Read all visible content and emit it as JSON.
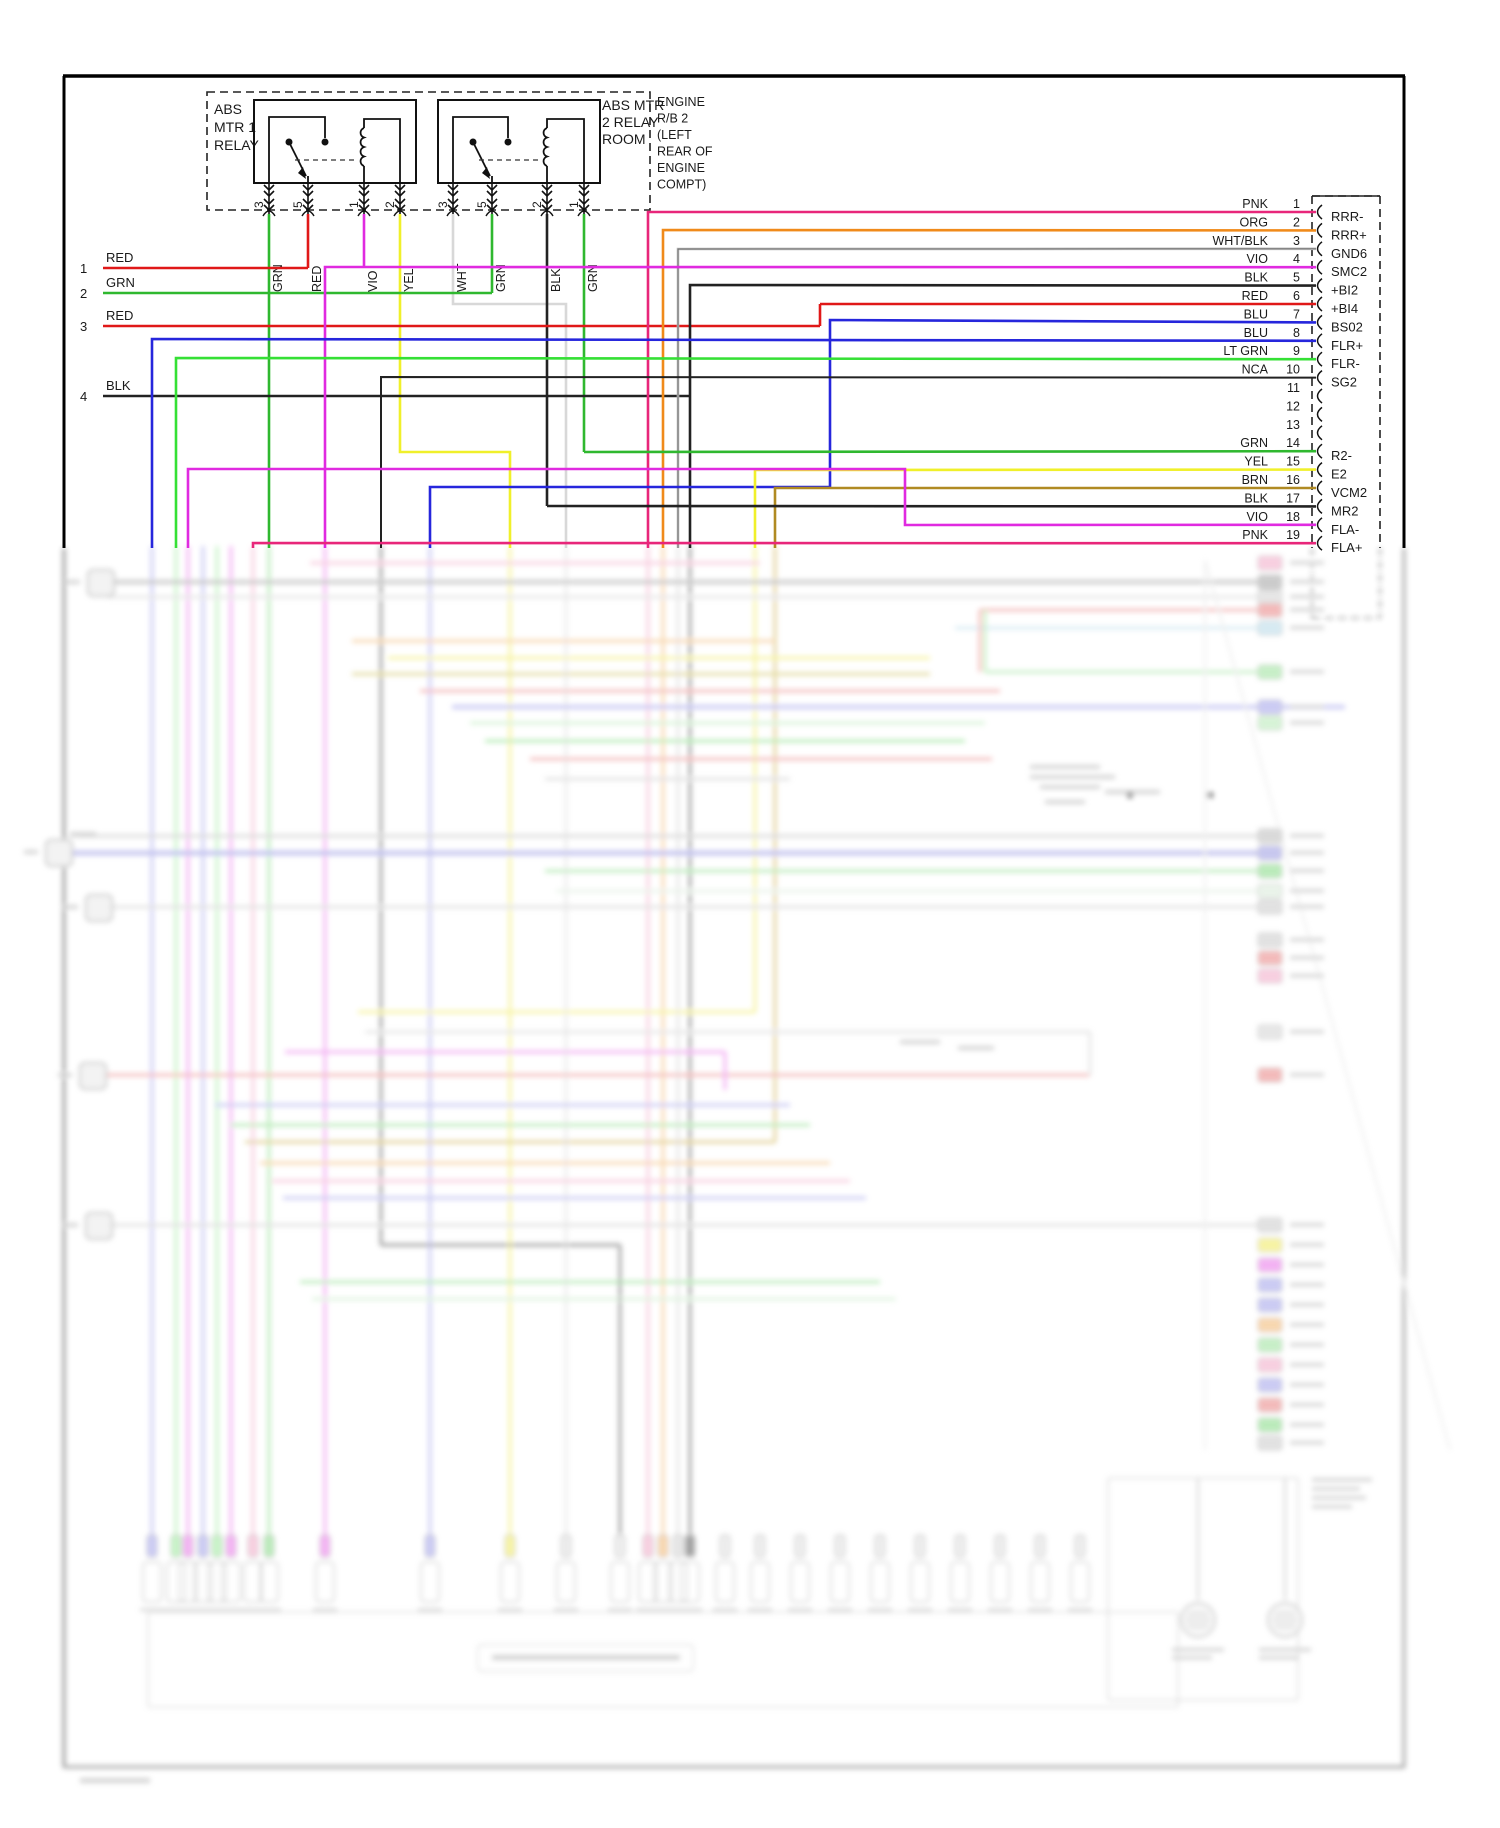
{
  "diagram": {
    "relay_section": {
      "relay1_label_lines": [
        "ABS",
        "MTR 1",
        "RELAY"
      ],
      "relay2_label_lines": [
        "ABS MTR",
        "2 RELAY",
        "ROOM"
      ],
      "location_label_lines": [
        "ENGINE",
        "R/B 2",
        "(LEFT",
        "REAR OF",
        "ENGINE",
        "COMPT)"
      ],
      "relay1_pin_numbers": [
        "3",
        "5",
        "1",
        "2"
      ],
      "relay2_pin_numbers": [
        "3",
        "5",
        "2",
        "1"
      ],
      "drop_wire_colors": [
        "GRN",
        "RED",
        "VIO",
        "YEL",
        "WHT",
        "GRN",
        "BLK",
        "GRN"
      ]
    },
    "left_wires": [
      {
        "num": "1",
        "color": "RED"
      },
      {
        "num": "2",
        "color": "GRN"
      },
      {
        "num": "3",
        "color": "RED"
      },
      {
        "num": "4",
        "color": "BLK"
      }
    ],
    "connector_pins": [
      {
        "num": "1",
        "color": "PNK",
        "signal": "RRR-"
      },
      {
        "num": "2",
        "color": "ORG",
        "signal": "RRR+"
      },
      {
        "num": "3",
        "color": "WHT/BLK",
        "signal": "GND6"
      },
      {
        "num": "4",
        "color": "VIO",
        "signal": "SMC2"
      },
      {
        "num": "5",
        "color": "BLK",
        "signal": "+BI2"
      },
      {
        "num": "6",
        "color": "RED",
        "signal": "+BI4"
      },
      {
        "num": "7",
        "color": "BLU",
        "signal": "BS02"
      },
      {
        "num": "8",
        "color": "BLU",
        "signal": "FLR+"
      },
      {
        "num": "9",
        "color": "LT GRN",
        "signal": "FLR-"
      },
      {
        "num": "10",
        "color": "NCA",
        "signal": "SG2"
      },
      {
        "num": "11",
        "color": "",
        "signal": ""
      },
      {
        "num": "12",
        "color": "",
        "signal": ""
      },
      {
        "num": "13",
        "color": "",
        "signal": ""
      },
      {
        "num": "14",
        "color": "GRN",
        "signal": "R2-"
      },
      {
        "num": "15",
        "color": "YEL",
        "signal": "E2"
      },
      {
        "num": "16",
        "color": "BRN",
        "signal": "VCM2"
      },
      {
        "num": "17",
        "color": "BLK",
        "signal": "MR2"
      },
      {
        "num": "18",
        "color": "VIO",
        "signal": "FLA-"
      },
      {
        "num": "19",
        "color": "PNK",
        "signal": "FLA+"
      }
    ],
    "wire_palette": {
      "PNK": "#e8267a",
      "ORG": "#f08a1a",
      "WHT/BLK": "#bdbdbd",
      "VIO": "#e02ae0",
      "BLK": "#222222",
      "RED": "#e01818",
      "BLU": "#2626dc",
      "LT GRN": "#35e035",
      "NCA": "#222222",
      "GRN": "#2fb82f",
      "YEL": "#f0f02a",
      "BRN": "#b08a22",
      "WHT": "#d8d8d8"
    }
  }
}
